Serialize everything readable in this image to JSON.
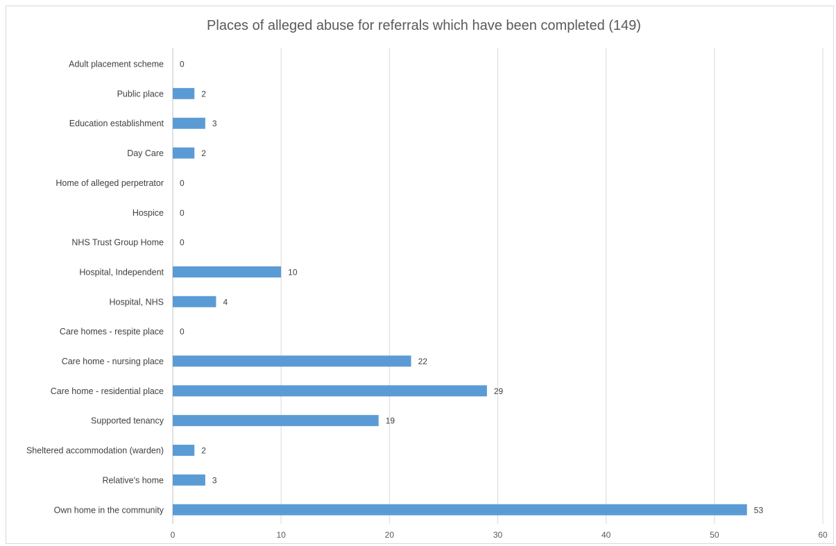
{
  "chart_data": {
    "type": "bar",
    "orientation": "horizontal",
    "title": "Places of alleged abuse for referrals which have been completed (149)",
    "categories": [
      "Adult placement scheme",
      "Public place",
      "Education establishment",
      "Day Care",
      "Home of alleged perpetrator",
      "Hospice",
      "NHS Trust Group Home",
      "Hospital, Independent",
      "Hospital, NHS",
      "Care homes - respite place",
      "Care home - nursing place",
      "Care home - residential place",
      "Supported tenancy",
      "Sheltered accommodation (warden)",
      "Relative's home",
      "Own home in the community"
    ],
    "values": [
      0,
      2,
      3,
      2,
      0,
      0,
      0,
      10,
      4,
      0,
      22,
      29,
      19,
      2,
      3,
      53
    ],
    "xlim": [
      0,
      60
    ],
    "xticks": [
      0,
      10,
      20,
      30,
      40,
      50,
      60
    ],
    "grid": true,
    "data_labels": true,
    "bar_color": "#5b9bd5"
  }
}
